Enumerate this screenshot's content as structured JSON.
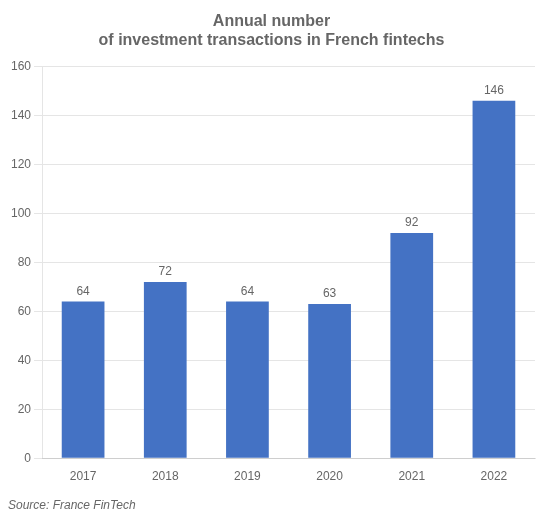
{
  "chart_data": {
    "type": "bar",
    "title": [
      "Annual number",
      "of investment transactions in French fintechs"
    ],
    "annotation": "Source: France FinTech",
    "categories": [
      "2017",
      "2018",
      "2019",
      "2020",
      "2021",
      "2022"
    ],
    "values": [
      64,
      72,
      64,
      63,
      92,
      146
    ],
    "color": "#4472c4",
    "ylim": [
      0,
      160
    ],
    "yticks": [
      0,
      20,
      40,
      60,
      80,
      100,
      120,
      140,
      160
    ],
    "grid": true,
    "data_labels": true
  }
}
